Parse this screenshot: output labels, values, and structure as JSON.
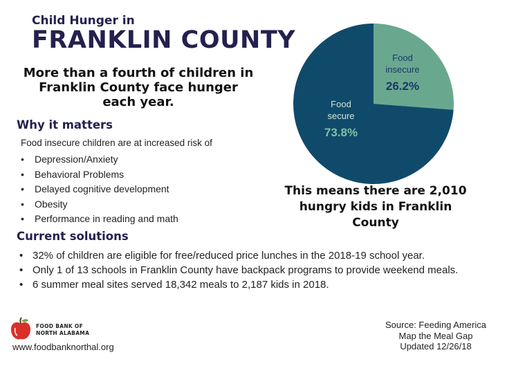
{
  "header": {
    "title_line1": "Child Hunger in",
    "title_line2": "FRANKLIN COUNTY",
    "subtitle": "More than a fourth of children in Franklin County face hunger each year."
  },
  "why": {
    "heading": "Why it matters",
    "intro": "Food insecure children are at increased risk of",
    "risks": [
      "Depression/Anxiety",
      "Behavioral Problems",
      "Delayed cognitive development",
      "Obesity",
      "Performance in reading and math"
    ]
  },
  "solutions": {
    "heading": "Current solutions",
    "items": [
      "32% of children are eligible for free/reduced price lunches in the 2018-19 school year.",
      "Only 1 of 13 schools in Franklin County have backpack programs to provide weekend meals.",
      "6 summer meal sites served 18,342 meals to 2,187 kids in 2018."
    ]
  },
  "chart_data": {
    "type": "pie",
    "slices": [
      {
        "label_line1": "Food",
        "label_line2": "insecure",
        "value": 26.2,
        "value_label": "26.2%",
        "color": "#69a88f",
        "text_color": "#1e3566",
        "label_color": "#1e3566"
      },
      {
        "label_line1": "Food",
        "label_line2": "secure",
        "value": 73.8,
        "value_label": "73.8%",
        "color": "#104a6a",
        "text_color": "#7fc2a6",
        "label_color": "#cfe6dd"
      }
    ]
  },
  "callout": "This means there are 2,010 hungry kids in Franklin County",
  "footer": {
    "logo_line1": "FOOD BANK OF",
    "logo_line2": "NORTH ALABAMA",
    "url": "www.foodbanknorthal.org",
    "source_line1": "Source: Feeding America",
    "source_line2": "Map the Meal Gap",
    "source_line3": "Updated 12/26/18"
  }
}
